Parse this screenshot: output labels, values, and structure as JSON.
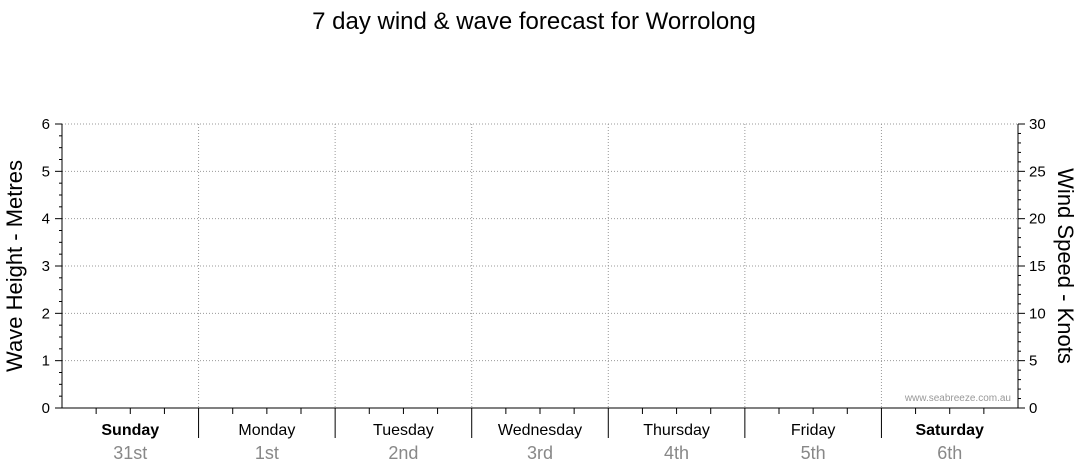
{
  "chart_data": {
    "type": "line",
    "title": "7 day wind & wave forecast for Worrolong",
    "y_left": {
      "label": "Wave Height - Metres",
      "range": [
        0,
        6
      ],
      "ticks": [
        "0",
        "1",
        "2",
        "3",
        "4",
        "5",
        "6"
      ]
    },
    "y_right": {
      "label": "Wind Speed - Knots",
      "range": [
        0,
        30
      ],
      "ticks": [
        "0",
        "5",
        "10",
        "15",
        "20",
        "25",
        "30"
      ]
    },
    "days": [
      {
        "name": "Sunday",
        "date": "31st",
        "weekend": true
      },
      {
        "name": "Monday",
        "date": "1st",
        "weekend": false
      },
      {
        "name": "Tuesday",
        "date": "2nd",
        "weekend": false
      },
      {
        "name": "Wednesday",
        "date": "3rd",
        "weekend": false
      },
      {
        "name": "Thursday",
        "date": "4th",
        "weekend": false
      },
      {
        "name": "Friday",
        "date": "5th",
        "weekend": false
      },
      {
        "name": "Saturday",
        "date": "6th",
        "weekend": true
      }
    ],
    "series": [],
    "grid": true,
    "watermark": "www.seabreeze.com.au"
  }
}
